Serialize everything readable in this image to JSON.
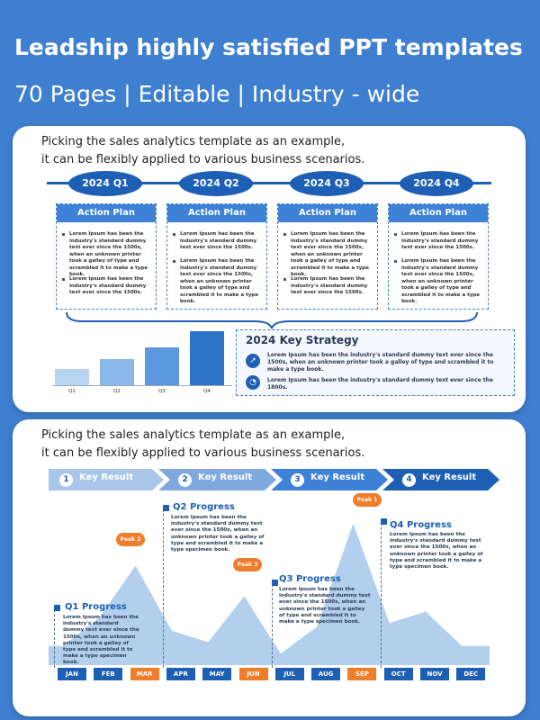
{
  "header": {
    "title": "Leadship highly satisfied PPT templates",
    "subtitle": "70 Pages | Editable | Industry - wide"
  },
  "intro": {
    "line1": "Picking the sales analytics template as an example,",
    "line2": "it can be flexibly applied to various business scenarios."
  },
  "panel1": {
    "quarters": [
      "2024 Q1",
      "2024 Q2",
      "2024 Q3",
      "2024 Q4"
    ],
    "action_heading": "Action Plan",
    "action_plans": [
      [
        "Lorem Ipsum has been the industry's standard dummy text ever since the 1500s, when an unknown printer took a galley of type and scrambled it to make a type book.",
        "Lorem Ipsum has been the industry's standard dummy text ever since the 1500s."
      ],
      [
        "Lorem Ipsum has been the industry's standard dummy text ever since the 1500s.",
        "Lorem Ipsum has been the industry's standard dummy text ever since the 1500s, when an unknown printer took a galley of type and scrambled it to make a type book."
      ],
      [
        "Lorem Ipsum has been the industry's standard dummy text ever since the 1500s, when an unknown printer took a galley of type and scrambled it to make a type book.",
        "Lorem Ipsum has been the industry's standard dummy text ever since the 1500s."
      ],
      [
        "Lorem Ipsum has been the industry's standard dummy text ever since the 1500s.",
        "Lorem Ipsum has been the industry's standard dummy text ever since the 1500s, when an unknown printer took a galley of type and scrambled it to make a type book."
      ]
    ],
    "bar_labels": [
      "Q1",
      "Q2",
      "Q3",
      "Q4"
    ],
    "bar_values": [
      1,
      1.6,
      2.3,
      3.3
    ],
    "bar_colors": [
      "#b8d4f3",
      "#8ab8ea",
      "#5b98dd",
      "#2e74c9"
    ],
    "strategy_title": "2024 Key Strategy",
    "strategy_items": [
      "Lorem Ipsum has been the industry's standard dummy text ever since the 1500s, when an unknown printer took a galley of type and scrambled it to make a type book.",
      "Lorem Ipsum has been the industry's standard dummy text ever since the 1800s."
    ],
    "strategy_icons": [
      "trend-up-icon",
      "pie-chart-icon"
    ]
  },
  "panel2": {
    "key_results": [
      {
        "num": "1",
        "label": "Key Result"
      },
      {
        "num": "2",
        "label": "Key Result"
      },
      {
        "num": "3",
        "label": "Key Result"
      },
      {
        "num": "4",
        "label": "Key Result"
      }
    ],
    "key_result_colors": [
      "#a9c6ea",
      "#7fa9de",
      "#3d82d6",
      "#1d5fb4"
    ],
    "months": [
      "JAN",
      "FEB",
      "MAR",
      "APR",
      "MAY",
      "JUN",
      "JUL",
      "AUG",
      "SEP",
      "OCT",
      "NOV",
      "DEC"
    ],
    "highlight_months": [
      "MAR",
      "JUN",
      "SEP"
    ],
    "peaks": [
      "Peak 2",
      "Peak 3",
      "Peak 1"
    ],
    "progress": [
      {
        "title": "Q1 Progress",
        "text": "Lorem Ipsum has been the industry's standard dummy text ever since the 1500s, when an unknown printer took a galley of type and scrambled it to make a type specimen book."
      },
      {
        "title": "Q2 Progress",
        "text": "Lorem Ipsum has been the industry's standard dummy text ever since the 1500s, when an unknown printer took a galley of type and scrambled it to make a type specimen book."
      },
      {
        "title": "Q3 Progress",
        "text": "Lorem Ipsum has been the industry's standard dummy text ever since the 1500s, when an unknown printer took a galley of type and scrambled it to make a type specimen book."
      },
      {
        "title": "Q4 Progress",
        "text": "Lorem Ipsum has been the industry's standard dummy text ever since the 1500s, when an unknown printer took a galley of type and scrambled it to make a type specimen book."
      }
    ],
    "area_values": [
      0.25,
      0.62,
      1.3,
      0.45,
      0.3,
      0.9,
      0.15,
      0.5,
      1.85,
      0.55,
      0.7,
      0.25
    ],
    "area_color": "#b3cfee",
    "accent": "#f07d2a"
  }
}
